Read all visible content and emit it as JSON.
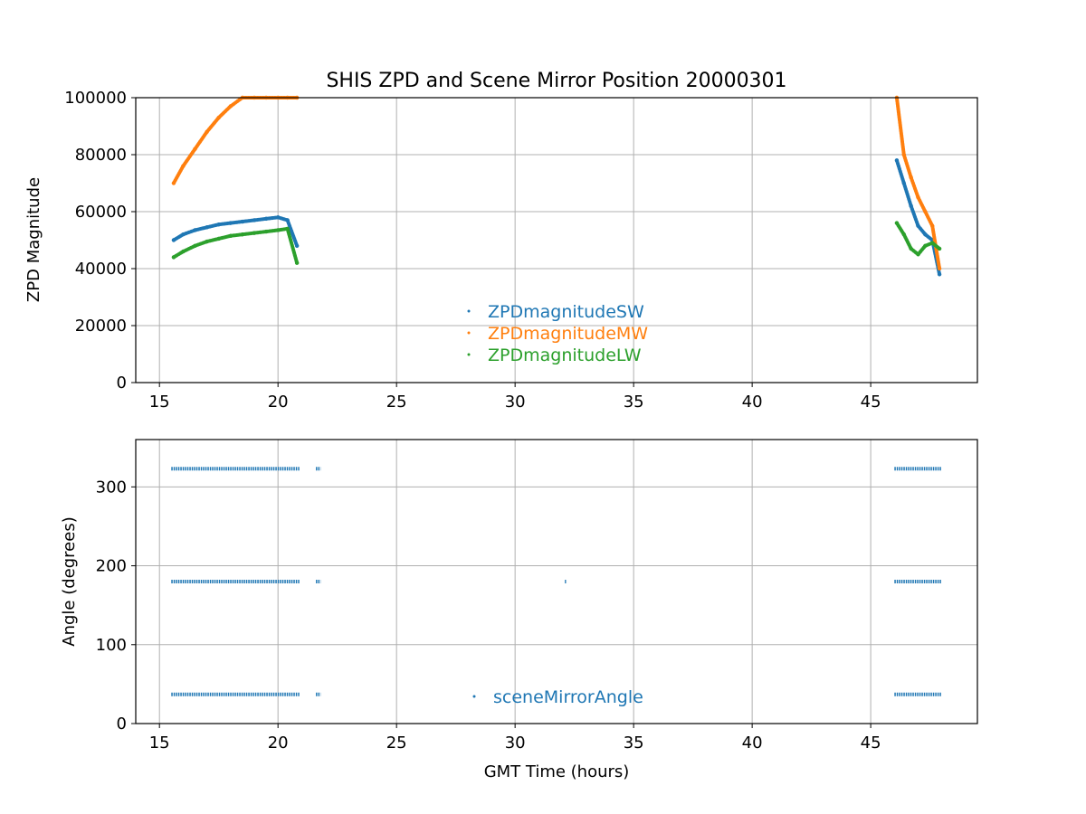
{
  "chart_data": [
    {
      "type": "scatter",
      "title": "SHIS ZPD and Scene Mirror Position 20000301",
      "xlabel": "",
      "ylabel": "ZPD Magnitude",
      "xlim": [
        14,
        49.5
      ],
      "ylim": [
        0,
        100000
      ],
      "xticks": [
        15,
        20,
        25,
        30,
        35,
        40,
        45
      ],
      "yticks": [
        0,
        20000,
        40000,
        60000,
        80000,
        100000
      ],
      "xtick_labels": [
        "15",
        "20",
        "25",
        "30",
        "35",
        "40",
        "45"
      ],
      "ytick_labels": [
        "0",
        "20000",
        "40000",
        "60000",
        "80000",
        "100000"
      ],
      "grid": true,
      "legend_position": "center-bottom",
      "series": [
        {
          "name": "ZPDmagnitudeSW",
          "color": "#1f77b4",
          "x": [
            15.6,
            16.0,
            16.5,
            17.0,
            17.5,
            18.0,
            18.5,
            19.0,
            19.5,
            20.0,
            20.4,
            20.8,
            46.1,
            46.4,
            46.7,
            47.0,
            47.3,
            47.6,
            47.9
          ],
          "y": [
            50000,
            52000,
            53500,
            54500,
            55500,
            56000,
            56500,
            57000,
            57500,
            58000,
            57000,
            48000,
            78000,
            70000,
            62000,
            55000,
            52000,
            50000,
            38000
          ]
        },
        {
          "name": "ZPDmagnitudeMW",
          "color": "#ff7f0e",
          "x": [
            15.6,
            16.0,
            16.5,
            17.0,
            17.5,
            18.0,
            18.5,
            19.0,
            19.5,
            20.0,
            20.4,
            20.8,
            46.1,
            46.4,
            46.7,
            47.0,
            47.3,
            47.6,
            47.9
          ],
          "y": [
            70000,
            76000,
            82000,
            88000,
            93000,
            97000,
            100000,
            100000,
            100000,
            100000,
            100000,
            100000,
            100000,
            80000,
            72000,
            65000,
            60000,
            55000,
            40000
          ]
        },
        {
          "name": "ZPDmagnitudeLW",
          "color": "#2ca02c",
          "x": [
            15.6,
            16.0,
            16.5,
            17.0,
            17.5,
            18.0,
            18.5,
            19.0,
            19.5,
            20.0,
            20.4,
            20.8,
            46.1,
            46.4,
            46.7,
            47.0,
            47.3,
            47.6,
            47.9
          ],
          "y": [
            44000,
            46000,
            48000,
            49500,
            50500,
            51500,
            52000,
            52500,
            53000,
            53500,
            54000,
            42000,
            56000,
            52000,
            47000,
            45000,
            48000,
            49000,
            47000
          ]
        }
      ]
    },
    {
      "type": "scatter",
      "title": "",
      "xlabel": "GMT Time (hours)",
      "ylabel": "Angle (degrees)",
      "xlim": [
        14,
        49.5
      ],
      "ylim": [
        0,
        360
      ],
      "xticks": [
        15,
        20,
        25,
        30,
        35,
        40,
        45
      ],
      "yticks": [
        0,
        100,
        200,
        300
      ],
      "xtick_labels": [
        "15",
        "20",
        "25",
        "30",
        "35",
        "40",
        "45"
      ],
      "ytick_labels": [
        "0",
        "100",
        "200",
        "300"
      ],
      "grid": true,
      "legend_position": "center-bottom",
      "series": [
        {
          "name": "sceneMirrorAngle",
          "color": "#1f77b4",
          "segments": [
            {
              "y": 323,
              "x_start": 15.5,
              "x_end": 20.9
            },
            {
              "y": 180,
              "x_start": 15.5,
              "x_end": 20.9
            },
            {
              "y": 37,
              "x_start": 15.5,
              "x_end": 20.9
            },
            {
              "y": 323,
              "x_start": 21.6,
              "x_end": 21.8
            },
            {
              "y": 180,
              "x_start": 21.6,
              "x_end": 21.8
            },
            {
              "y": 37,
              "x_start": 21.6,
              "x_end": 21.8
            },
            {
              "y": 180,
              "x_start": 32.1,
              "x_end": 32.15
            },
            {
              "y": 323,
              "x_start": 46.0,
              "x_end": 48.0
            },
            {
              "y": 180,
              "x_start": 46.0,
              "x_end": 48.0
            },
            {
              "y": 37,
              "x_start": 46.0,
              "x_end": 48.0
            }
          ]
        }
      ]
    }
  ]
}
